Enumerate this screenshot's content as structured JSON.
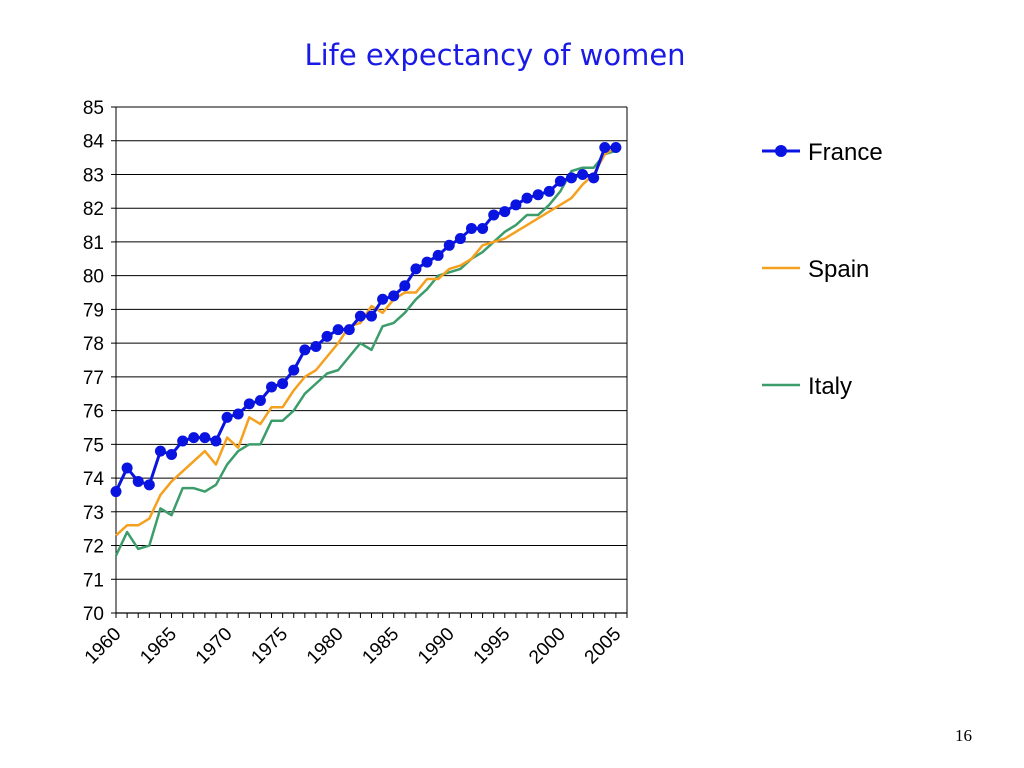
{
  "slide": {
    "title": "Life expectancy of women",
    "page_number": "16"
  },
  "chart_data": {
    "type": "line",
    "title": "Life expectancy of women",
    "xlabel": "",
    "ylabel": "",
    "xlim": [
      1960,
      2006
    ],
    "ylim": [
      70,
      85
    ],
    "ytick_step": 1,
    "xticks": [
      1960,
      1965,
      1970,
      1975,
      1980,
      1985,
      1990,
      1995,
      2000,
      2005
    ],
    "grid": "horizontal",
    "legend": "right",
    "x": [
      1960,
      1961,
      1962,
      1963,
      1964,
      1965,
      1966,
      1967,
      1968,
      1969,
      1970,
      1971,
      1972,
      1973,
      1974,
      1975,
      1976,
      1977,
      1978,
      1979,
      1980,
      1981,
      1982,
      1983,
      1984,
      1985,
      1986,
      1987,
      1988,
      1989,
      1990,
      1991,
      1992,
      1993,
      1994,
      1995,
      1996,
      1997,
      1998,
      1999,
      2000,
      2001,
      2002,
      2003,
      2004,
      2005
    ],
    "series": [
      {
        "name": "France",
        "color": "#0a14e0",
        "markers": true,
        "values": [
          73.6,
          74.3,
          73.9,
          73.8,
          74.8,
          74.7,
          75.1,
          75.2,
          75.2,
          75.1,
          75.8,
          75.9,
          76.2,
          76.3,
          76.7,
          76.8,
          77.2,
          77.8,
          77.9,
          78.2,
          78.4,
          78.4,
          78.8,
          78.8,
          79.3,
          79.4,
          79.7,
          80.2,
          80.4,
          80.6,
          80.9,
          81.1,
          81.4,
          81.4,
          81.8,
          81.9,
          82.1,
          82.3,
          82.4,
          82.5,
          82.8,
          82.9,
          83.0,
          82.9,
          83.8,
          83.8
        ]
      },
      {
        "name": "Spain",
        "color": "#f5a01e",
        "markers": false,
        "values": [
          72.3,
          72.6,
          72.6,
          72.8,
          73.5,
          73.9,
          74.2,
          74.5,
          74.8,
          74.4,
          75.2,
          74.9,
          75.8,
          75.6,
          76.1,
          76.1,
          76.6,
          77.0,
          77.2,
          77.6,
          78.0,
          78.5,
          78.6,
          79.1,
          78.9,
          79.3,
          79.5,
          79.5,
          79.9,
          79.9,
          80.2,
          80.3,
          80.5,
          80.9,
          81.0,
          81.1,
          81.3,
          81.5,
          81.7,
          81.9,
          82.1,
          82.3,
          82.7,
          83.0,
          83.6,
          83.8
        ]
      },
      {
        "name": "Italy",
        "color": "#3c9d6b",
        "markers": false,
        "values": [
          71.7,
          72.4,
          71.9,
          72.0,
          73.1,
          72.9,
          73.7,
          73.7,
          73.6,
          73.8,
          74.4,
          74.8,
          75.0,
          75.0,
          75.7,
          75.7,
          76.0,
          76.5,
          76.8,
          77.1,
          77.2,
          77.6,
          78.0,
          77.8,
          78.5,
          78.6,
          78.9,
          79.3,
          79.6,
          80.0,
          80.1,
          80.2,
          80.5,
          80.7,
          81.0,
          81.3,
          81.5,
          81.8,
          81.8,
          82.1,
          82.5,
          83.1,
          83.2,
          83.2,
          83.6,
          83.7
        ]
      }
    ]
  }
}
